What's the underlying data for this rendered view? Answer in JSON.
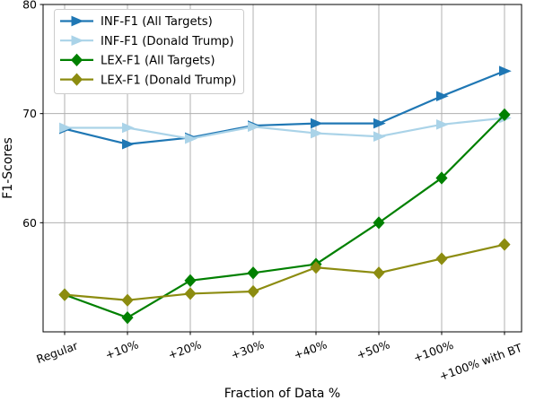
{
  "chart_data": {
    "type": "line",
    "title": "",
    "xlabel": "Fraction of Data %",
    "ylabel": "F1-Scores",
    "categories": [
      "Regular",
      "+10%",
      "+20%",
      "+30%",
      "+40%",
      "+50%",
      "+100%",
      "+100% with BT"
    ],
    "ylim": [
      50,
      80
    ],
    "yticks": [
      60,
      70,
      80
    ],
    "grid": true,
    "legend_position": "upper-left",
    "series": [
      {
        "name": "INF-F1 (All Targets)",
        "color": "#1f77b4",
        "marker": "triangle-right",
        "values": [
          68.6,
          67.2,
          67.8,
          68.9,
          69.1,
          69.1,
          71.6,
          73.9
        ]
      },
      {
        "name": "INF-F1 (Donald Trump)",
        "color": "#aad3e8",
        "marker": "triangle-right",
        "values": [
          68.7,
          68.7,
          67.7,
          68.8,
          68.2,
          67.9,
          69.0,
          69.6
        ]
      },
      {
        "name": "LEX-F1 (All Targets)",
        "color": "#008000",
        "marker": "diamond",
        "values": [
          53.4,
          51.3,
          54.7,
          55.4,
          56.2,
          60.0,
          64.1,
          69.9
        ]
      },
      {
        "name": "LEX-F1 (Donald Trump)",
        "color": "#8c8c10",
        "marker": "diamond",
        "values": [
          53.4,
          52.9,
          53.5,
          53.7,
          55.9,
          55.4,
          56.7,
          58.0
        ]
      }
    ],
    "styles": {
      "grid_color": "#b0b0b0",
      "axis_color": "#000000",
      "text_color": "#000000",
      "legend_border": "#cccccc",
      "background": "#ffffff"
    }
  }
}
